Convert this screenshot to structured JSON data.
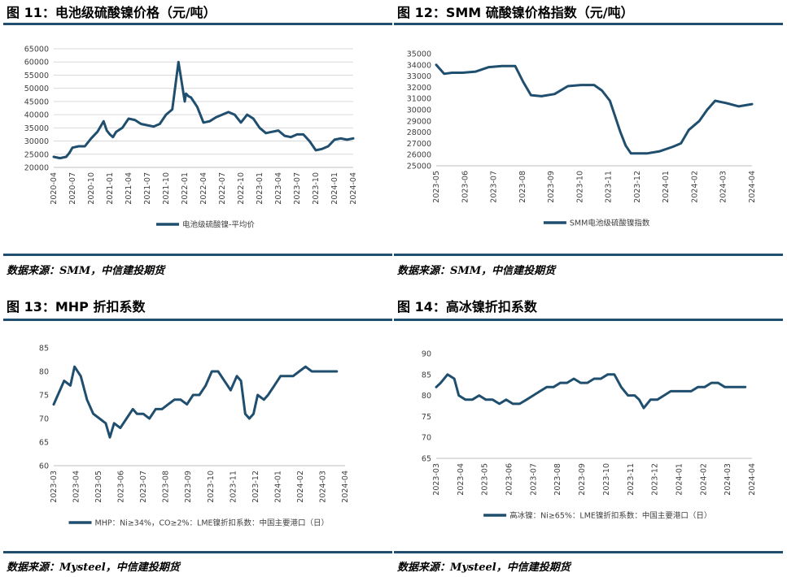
{
  "figures": [
    {
      "title": "图 11：电池级硫酸镍价格（元/吨）",
      "source": "数据来源：SMM，中信建投期货"
    },
    {
      "title": "图 12：SMM 硫酸镍价格指数（元/吨）",
      "source": "数据来源：SMM，中信建投期货"
    },
    {
      "title": "图 13：MHP 折扣系数",
      "source": "数据来源：Mysteel，中信建投期货"
    },
    {
      "title": "图 14：高冰镍折扣系数",
      "source": "数据来源：Mysteel，中信建投期货"
    }
  ],
  "colors": {
    "line": "#1f4e6e",
    "grid": "#d9d9d9",
    "rule": "#1f4e6e"
  },
  "chart_data": [
    {
      "type": "line",
      "ylim": [
        20000,
        65000
      ],
      "yticks": [
        20000,
        25000,
        30000,
        35000,
        40000,
        45000,
        50000,
        55000,
        60000,
        65000
      ],
      "xrange": [
        0,
        48
      ],
      "xticks": [
        "2020-04",
        "2020-07",
        "2020-10",
        "2021-01",
        "2021-04",
        "2021-07",
        "2021-10",
        "2022-01",
        "2022-04",
        "2022-07",
        "2022-10",
        "2023-01",
        "2023-04",
        "2023-07",
        "2023-10",
        "2024-01",
        "2024-04"
      ],
      "grid": true,
      "legend_position": "bottom",
      "series": [
        {
          "name": "电池级硫酸镍-平均价",
          "x": [
            0,
            1,
            2,
            2.5,
            3,
            4,
            5,
            6,
            7,
            8,
            8.5,
            9,
            9.5,
            10,
            11,
            12,
            13,
            14,
            15,
            16,
            17,
            18,
            19,
            20,
            21,
            21.2,
            21.4,
            21.6,
            22,
            23,
            24,
            25,
            26,
            27,
            28,
            29,
            30,
            31,
            32,
            33,
            34,
            35,
            36,
            37,
            38,
            39,
            40,
            41,
            42,
            43,
            44,
            45,
            46,
            47,
            48
          ],
          "y": [
            24000,
            23500,
            24000,
            25500,
            27500,
            28000,
            28000,
            31000,
            33500,
            37500,
            34000,
            32500,
            31500,
            33500,
            35000,
            38500,
            38000,
            36500,
            36000,
            35500,
            36500,
            40000,
            42000,
            60000,
            45000,
            48000,
            47500,
            47000,
            46500,
            43000,
            37000,
            37500,
            39000,
            40000,
            41000,
            40000,
            37000,
            40000,
            38500,
            35000,
            33000,
            33500,
            34000,
            32000,
            31500,
            32500,
            32500,
            30000,
            26500,
            27000,
            28000,
            30500,
            31000,
            30500,
            31000
          ]
        }
      ]
    },
    {
      "type": "line",
      "ylim": [
        25000,
        35000
      ],
      "yticks": [
        25000,
        26000,
        27000,
        28000,
        29000,
        30000,
        31000,
        32000,
        33000,
        34000,
        35000
      ],
      "xrange": [
        0,
        12
      ],
      "xticks": [
        "2023-05",
        "2023-06",
        "2023-07",
        "2023-08",
        "2023-09",
        "2023-10",
        "2023-11",
        "2023-12",
        "2024-01",
        "2024-02",
        "2024-03",
        "2024-04"
      ],
      "grid": false,
      "legend_position": "bottom",
      "series": [
        {
          "name": "SMM电池级硫酸镍指数",
          "x": [
            0,
            0.3,
            0.6,
            1,
            1.5,
            2,
            2.5,
            3,
            3.3,
            3.6,
            4,
            4.5,
            5,
            5.5,
            6,
            6.3,
            6.6,
            7,
            7.2,
            7.4,
            7.6,
            8,
            8.5,
            9,
            9.3,
            9.6,
            10,
            10.3,
            10.6,
            11,
            11.5,
            12
          ],
          "y": [
            34000,
            33200,
            33300,
            33300,
            33400,
            33800,
            33900,
            33900,
            32500,
            31300,
            31200,
            31400,
            32100,
            32200,
            32200,
            31700,
            30800,
            28000,
            26800,
            26100,
            26100,
            26100,
            26300,
            26700,
            27000,
            28200,
            29000,
            30000,
            30800,
            30600,
            30300,
            30500
          ]
        }
      ]
    },
    {
      "type": "line",
      "ylim": [
        60,
        85
      ],
      "yticks": [
        60,
        65,
        70,
        75,
        80,
        85
      ],
      "xrange": [
        0,
        14
      ],
      "xticks": [
        "2023-03",
        "2023-04",
        "2023-05",
        "2023-06",
        "2023-07",
        "2023-08",
        "2023-09",
        "2023-10",
        "2023-11",
        "2023-12",
        "2024-01",
        "2024-02",
        "2024-03",
        "2024-04"
      ],
      "grid": false,
      "legend_position": "bottom",
      "series": [
        {
          "name": "MHP：Ni≥34%，CO≥2%：LME镍折扣系数：中国主要港口（日）",
          "x": [
            0,
            0.2,
            0.5,
            0.8,
            1,
            1.3,
            1.6,
            1.9,
            2.2,
            2.5,
            2.7,
            2.9,
            3.2,
            3.5,
            3.8,
            4,
            4.3,
            4.6,
            4.9,
            5.2,
            5.5,
            5.8,
            6.1,
            6.4,
            6.7,
            7,
            7.3,
            7.6,
            7.9,
            8.2,
            8.5,
            8.8,
            9,
            9.2,
            9.4,
            9.6,
            9.8,
            10.1,
            10.3,
            10.6,
            10.9,
            11.2,
            11.5,
            11.8,
            12.1,
            12.4,
            12.7,
            13,
            13.3,
            13.6
          ],
          "y": [
            73,
            75,
            78,
            77,
            81,
            79,
            74,
            71,
            70,
            69,
            66,
            69,
            68,
            70,
            72,
            71,
            71,
            70,
            72,
            72,
            73,
            74,
            74,
            73,
            75,
            75,
            77,
            80,
            80,
            78,
            76,
            79,
            78,
            71,
            70,
            71,
            75,
            74,
            75,
            77,
            79,
            79,
            79,
            80,
            81,
            80,
            80,
            80,
            80,
            80
          ]
        }
      ]
    },
    {
      "type": "line",
      "ylim": [
        65,
        90
      ],
      "yticks": [
        65,
        70,
        75,
        80,
        85,
        90
      ],
      "xrange": [
        0,
        14
      ],
      "xticks": [
        "2023-03",
        "2023-04",
        "2023-05",
        "2023-06",
        "2023-07",
        "2023-08",
        "2023-09",
        "2023-10",
        "2023-11",
        "2023-12",
        "2024-01",
        "2024-02",
        "2024-03",
        "2024-04"
      ],
      "grid": false,
      "legend_position": "bottom",
      "series": [
        {
          "name": "高冰镍：Ni≥65%：LME镍折扣系数：中国主要港口（日）",
          "x": [
            0,
            0.2,
            0.5,
            0.8,
            1,
            1.3,
            1.6,
            1.9,
            2.2,
            2.5,
            2.8,
            3.1,
            3.4,
            3.7,
            4,
            4.3,
            4.6,
            4.9,
            5.2,
            5.5,
            5.8,
            6.1,
            6.4,
            6.7,
            7,
            7.3,
            7.6,
            7.9,
            8.2,
            8.5,
            8.8,
            9,
            9.2,
            9.5,
            9.8,
            10.1,
            10.4,
            10.7,
            11,
            11.3,
            11.6,
            11.9,
            12.2,
            12.5,
            12.8,
            13.1,
            13.4,
            13.7
          ],
          "y": [
            82,
            83,
            85,
            84,
            80,
            79,
            79,
            80,
            79,
            79,
            78,
            79,
            78,
            78,
            79,
            80,
            81,
            82,
            82,
            83,
            83,
            84,
            83,
            83,
            84,
            84,
            85,
            85,
            82,
            80,
            80,
            79,
            77,
            79,
            79,
            80,
            81,
            81,
            81,
            81,
            82,
            82,
            83,
            83,
            82,
            82,
            82,
            82
          ]
        }
      ]
    }
  ]
}
